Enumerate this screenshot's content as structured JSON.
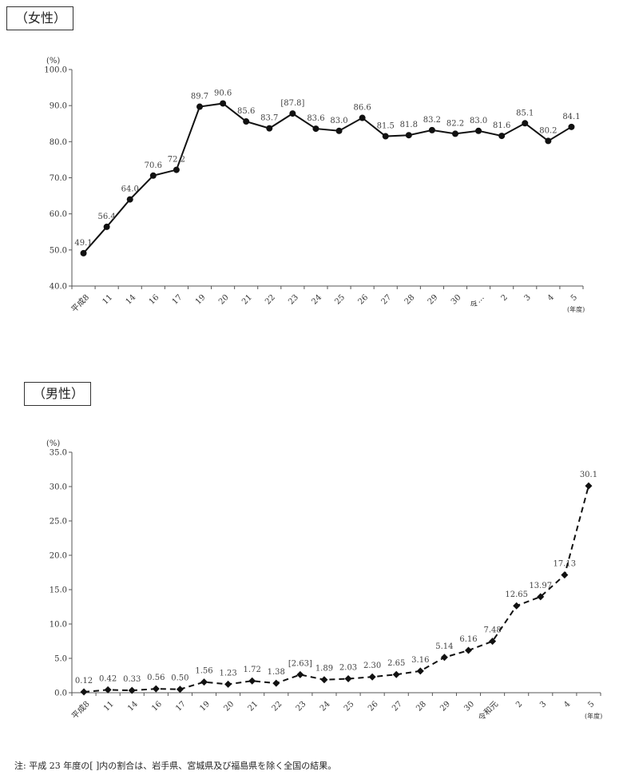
{
  "female_title": "（女性）",
  "male_title": "（男性）",
  "note": "注: 平成 23 年度の[  ]内の割合は、岩手県、宮城県及び福島県を除く全国の結果。",
  "chart_data": [
    {
      "type": "line",
      "y_unit": "(%)",
      "x_unit": "(年度)",
      "ylim": [
        40,
        100
      ],
      "yticks": [
        "40.0",
        "50.0",
        "60.0",
        "70.0",
        "80.0",
        "90.0",
        "100.0"
      ],
      "categories": [
        "平成8",
        "11",
        "14",
        "16",
        "17",
        "19",
        "20",
        "21",
        "22",
        "23",
        "24",
        "25",
        "26",
        "27",
        "28",
        "29",
        "30",
        "令…",
        "2",
        "3",
        "4",
        "5"
      ],
      "values": [
        49.1,
        56.4,
        64.0,
        70.6,
        72.2,
        89.7,
        90.6,
        85.6,
        83.7,
        87.8,
        83.6,
        83.0,
        86.6,
        81.5,
        81.8,
        83.2,
        82.2,
        83.0,
        81.6,
        85.1,
        80.2,
        84.1
      ],
      "labels": [
        "49.1",
        "56.4",
        "64.0",
        "70.6",
        "72.2",
        "89.7",
        "90.6",
        "85.6",
        "83.7",
        "[87.8]",
        "83.6",
        "83.0",
        "86.6",
        "81.5",
        "81.8",
        "83.2",
        "82.2",
        "83.0",
        "81.6",
        "85.1",
        "80.2",
        "84.1"
      ],
      "line_style": "solid",
      "marker": "circle",
      "color": "#111111"
    },
    {
      "type": "line",
      "y_unit": "(%)",
      "x_unit": "(年度)",
      "ylim": [
        0,
        35
      ],
      "yticks": [
        "0.0",
        "5.0",
        "10.0",
        "15.0",
        "20.0",
        "25.0",
        "30.0",
        "35.0"
      ],
      "categories": [
        "平成8",
        "11",
        "14",
        "16",
        "17",
        "19",
        "20",
        "21",
        "22",
        "23",
        "24",
        "25",
        "26",
        "27",
        "28",
        "29",
        "30",
        "令和元",
        "2",
        "3",
        "4",
        "5"
      ],
      "values": [
        0.12,
        0.42,
        0.33,
        0.56,
        0.5,
        1.56,
        1.23,
        1.72,
        1.38,
        2.63,
        1.89,
        2.03,
        2.3,
        2.65,
        3.16,
        5.14,
        6.16,
        7.48,
        12.65,
        13.97,
        17.13,
        30.1
      ],
      "labels": [
        "0.12",
        "0.42",
        "0.33",
        "0.56",
        "0.50",
        "1.56",
        "1.23",
        "1.72",
        "1.38",
        "[2.63]",
        "1.89",
        "2.03",
        "2.30",
        "2.65",
        "3.16",
        "5.14",
        "6.16",
        "7.48",
        "12.65",
        "13.97",
        "17.13",
        "30.1"
      ],
      "line_style": "dashed",
      "marker": "diamond",
      "color": "#111111"
    }
  ]
}
